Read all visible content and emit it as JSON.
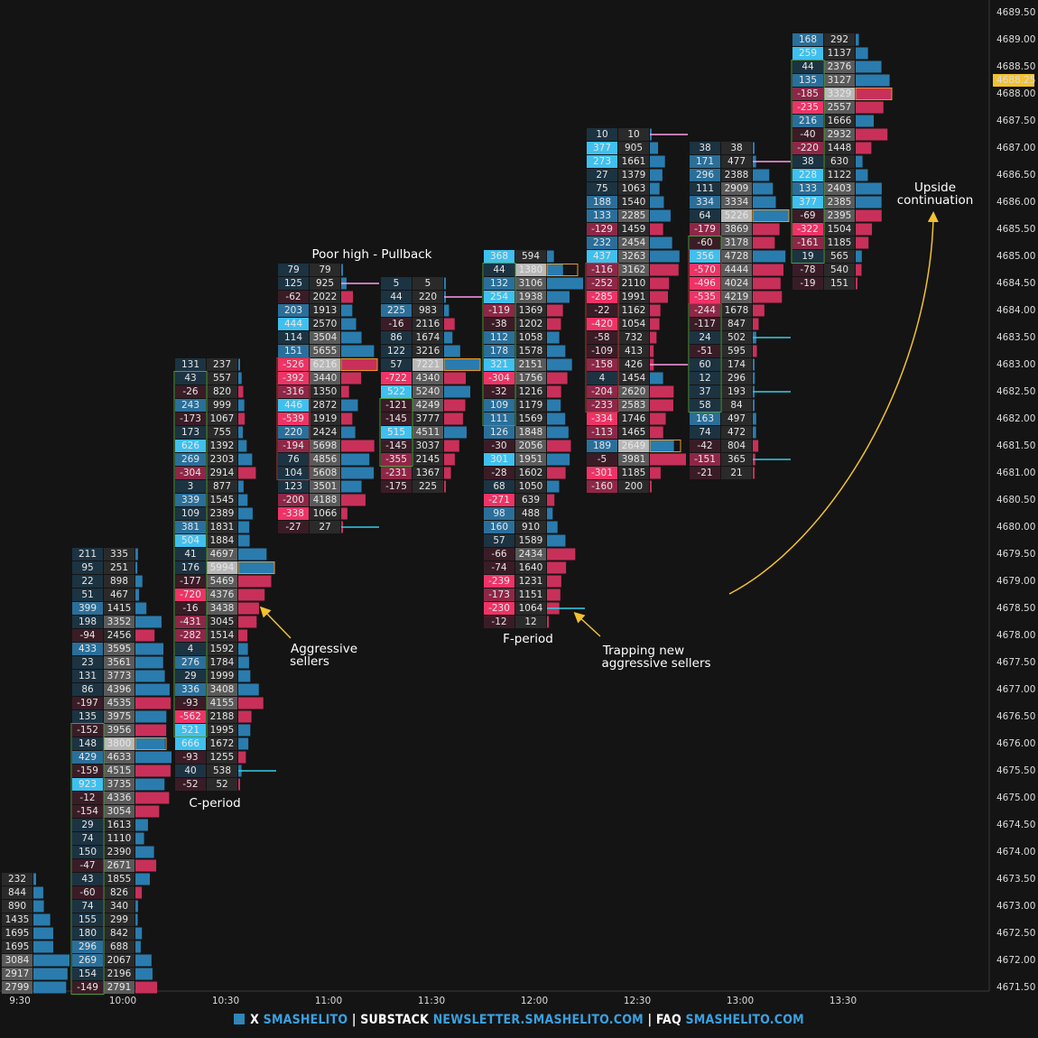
{
  "footer": {
    "x_label": "X",
    "x_handle": "SMASHELITO",
    "substack_label": "SUBSTACK",
    "substack_url": "NEWSLETTER.SMASHELITO.COM",
    "faq_label": "FAQ",
    "faq_url": "SMASHELITO.COM",
    "sep": "|"
  },
  "chart_data": {
    "type": "footprint",
    "price_axis": {
      "labels": [
        "4689.50",
        "4689.00",
        "4688.50",
        "4688.00",
        "4687.50",
        "4687.00",
        "4686.50",
        "4686.00",
        "4685.50",
        "4685.00",
        "4684.50",
        "4684.00",
        "4683.50",
        "4683.00",
        "4682.50",
        "4682.00",
        "4681.50",
        "4681.00",
        "4680.50",
        "4680.00",
        "4679.50",
        "4679.00",
        "4678.50",
        "4678.00",
        "4677.50",
        "4677.00",
        "4676.50",
        "4676.00",
        "4675.50",
        "4675.00",
        "4674.50",
        "4674.00",
        "4673.50",
        "4673.00",
        "4672.50",
        "4672.00",
        "4671.50"
      ],
      "last_price": "4688.25",
      "tick_size": 0.25
    },
    "time_labels": [
      "9:30",
      "10:00",
      "10:30",
      "11:00",
      "11:30",
      "12:00",
      "12:30",
      "13:00",
      "13:30"
    ],
    "colors": {
      "background": "#141414",
      "buy_bar": "#2a7cae",
      "sell_bar": "#c8305a",
      "poc_cell": "#b8b8b8",
      "delta_pos_hi": "#3fc0ef",
      "delta_neg_hi": "#ee3366",
      "yellow": "#f2c230",
      "green_box": "#4e9a3e",
      "red_box": "#b03a3a",
      "orange_box": "#e69a2a",
      "cyan_line": "#30d0e8",
      "pink_line": "#ff9ce8"
    },
    "columns": [
      {
        "time": "9:30",
        "top": 4673.5,
        "poc": null,
        "delta": [],
        "volume": [
          232,
          844,
          890,
          1435,
          1695,
          1695,
          3084,
          2917,
          2799
        ]
      },
      {
        "time": "10:00",
        "top": 4679.5,
        "poc": 4676.0,
        "delta": [
          211,
          95,
          22,
          51,
          399,
          198,
          -94,
          433,
          23,
          131,
          86,
          -197,
          135,
          -152,
          148,
          429,
          -159,
          923,
          -12,
          -154,
          29,
          74,
          150,
          -47,
          43,
          -60,
          74,
          155,
          180,
          296,
          269,
          154,
          -149
        ],
        "volume": [
          335,
          251,
          898,
          467,
          1415,
          3352,
          2456,
          3595,
          3561,
          3773,
          4396,
          4535,
          3975,
          3956,
          3800,
          4633,
          4515,
          3735,
          4336,
          3054,
          1613,
          1110,
          2390,
          2671,
          1855,
          826,
          340,
          299,
          842,
          688,
          2067,
          2196,
          2791
        ]
      },
      {
        "time": "10:30",
        "top": 4683.0,
        "poc": 4679.25,
        "delta": [
          131,
          43,
          -26,
          243,
          -173,
          173,
          626,
          269,
          -304,
          3,
          339,
          109,
          381,
          504,
          41,
          176,
          -177,
          -720,
          -16,
          -431,
          -282,
          4,
          276,
          29,
          336,
          -93,
          -562,
          521,
          666,
          -93,
          40,
          -52
        ],
        "volume": [
          237,
          557,
          820,
          999,
          1067,
          755,
          1392,
          2303,
          2914,
          877,
          1545,
          2389,
          1831,
          1884,
          4697,
          5994,
          5469,
          4376,
          3438,
          3045,
          1514,
          1592,
          1784,
          1999,
          3408,
          4155,
          2188,
          1995,
          1672,
          1255,
          538,
          52
        ]
      },
      {
        "time": "11:00",
        "top": 4684.75,
        "poc": 4683.0,
        "delta": [
          79,
          125,
          -62,
          203,
          444,
          114,
          151,
          -526,
          -392,
          -316,
          446,
          -539,
          220,
          -194,
          76,
          104,
          123,
          -200,
          -338,
          -27
        ],
        "volume": [
          79,
          925,
          2022,
          1913,
          2570,
          3504,
          5655,
          6216,
          3440,
          1350,
          2872,
          1919,
          2424,
          5698,
          4856,
          5608,
          3501,
          4188,
          1066,
          27
        ]
      },
      {
        "time": "11:30",
        "top": 4684.5,
        "poc": 4683.0,
        "delta": [
          5,
          44,
          225,
          -16,
          86,
          122,
          57,
          -722,
          522,
          -121,
          -145,
          515,
          -145,
          -355,
          -231,
          -175
        ],
        "volume": [
          5,
          220,
          983,
          2116,
          1674,
          3216,
          7221,
          4340,
          5240,
          4249,
          3777,
          4511,
          3037,
          2145,
          1367,
          225
        ]
      },
      {
        "time": "12:00",
        "top": 4685.0,
        "poc": 4684.75,
        "delta": [
          368,
          44,
          132,
          254,
          -119,
          -38,
          112,
          178,
          321,
          -304,
          -32,
          109,
          111,
          126,
          -30,
          301,
          -28,
          68,
          -271,
          98,
          160,
          57,
          -66,
          -74,
          -239,
          -173,
          -230,
          -12
        ],
        "volume": [
          594,
          1380,
          3106,
          1938,
          1369,
          1202,
          1058,
          1578,
          2151,
          1756,
          1216,
          1179,
          1569,
          1848,
          2056,
          1951,
          1602,
          1050,
          639,
          488,
          910,
          1589,
          2434,
          1640,
          1231,
          1151,
          1064,
          12
        ]
      },
      {
        "time": "12:30",
        "top": 4687.25,
        "poc": 4681.5,
        "delta": [
          10,
          377,
          273,
          27,
          75,
          188,
          133,
          -129,
          232,
          437,
          -116,
          -252,
          -285,
          -22,
          -420,
          -58,
          -109,
          -158,
          4,
          -204,
          -233,
          -334,
          -113,
          189,
          -5,
          -301,
          -160
        ],
        "volume": [
          10,
          905,
          1661,
          1379,
          1063,
          1540,
          2285,
          1459,
          2454,
          3263,
          3162,
          2110,
          1991,
          1162,
          1054,
          732,
          413,
          426,
          1454,
          2620,
          2583,
          1746,
          1465,
          2649,
          3981,
          1185,
          200
        ]
      },
      {
        "time": "13:00",
        "top": 4687.0,
        "poc": 4685.75,
        "delta": [
          38,
          171,
          296,
          111,
          334,
          64,
          -179,
          -60,
          356,
          -570,
          -496,
          -535,
          -244,
          -117,
          24,
          -51,
          60,
          12,
          37,
          58,
          163,
          74,
          -42,
          -151,
          -21
        ],
        "volume": [
          38,
          477,
          2388,
          2909,
          3334,
          5226,
          3869,
          3178,
          4728,
          4444,
          4024,
          4219,
          1678,
          847,
          502,
          595,
          174,
          296,
          193,
          84,
          497,
          472,
          804,
          365,
          21
        ]
      },
      {
        "time": "13:30",
        "top": 4689.0,
        "poc": 4688.0,
        "delta": [
          168,
          259,
          44,
          135,
          -185,
          -235,
          216,
          -40,
          -220,
          38,
          228,
          133,
          377,
          -69,
          -322,
          -161,
          19,
          -78,
          -19
        ],
        "volume": [
          292,
          1137,
          2376,
          3127,
          3329,
          2557,
          1666,
          2932,
          1448,
          630,
          1122,
          2403,
          2385,
          2395,
          1504,
          1185,
          565,
          540,
          151
        ]
      }
    ],
    "annotations": [
      "Poor high - Pullback",
      "Aggressive sellers",
      "C-period",
      "F-period",
      "Trapping new aggressive sellers",
      "Upside continuation"
    ]
  }
}
